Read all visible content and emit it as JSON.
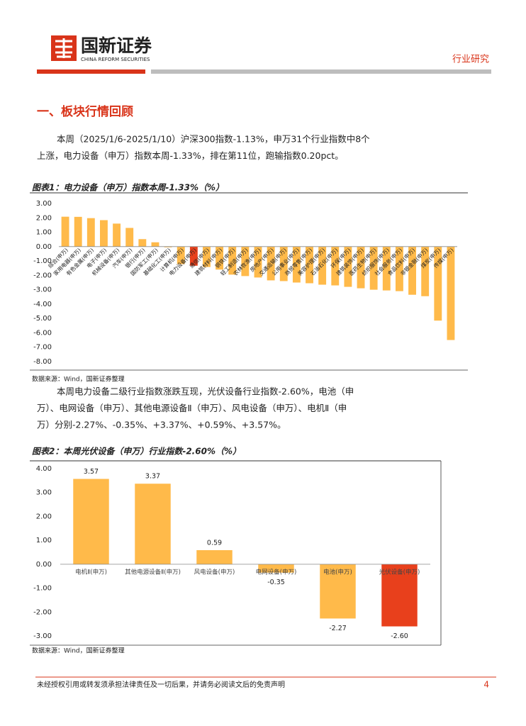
{
  "header": {
    "brand": "国新证券",
    "brand_en": "CHINA REFORM SECURITIES",
    "section_tag": "行业研究"
  },
  "heading": "一、板块行情回顾",
  "paragraphs": [
    [
      "本周（2025/1/6-2025/1/10）沪深300指数-1.13%，申万31个行业指数中8个",
      "上涨，电力设备（申万）指数本周-1.33%，排在第11位，跑输指数0.20pct。"
    ],
    [
      "本周电力设备二级行业指数涨跌互现，光伏设备行业指数-2.60%，电池（申",
      "万）、电网设备（申万）、其他电源设备Ⅱ（申万）、风电设备（申万）、电机Ⅱ（申",
      "万）分别-2.27%、-0.35%、+3.37%、+0.59%、+3.57%。"
    ]
  ],
  "chart_data": [
    {
      "type": "bar",
      "title": "图表1：电力设备（申万）指数本周-1.33%（%）",
      "source": "数据来源：Wind，国新证券整理",
      "categories": [
        "综合(申万)",
        "家用电器(申万)",
        "有色金属(申万)",
        "电子(申万)",
        "机械设备(申万)",
        "汽车(申万)",
        "银行(申万)",
        "国防军工(申万)",
        "基础化工(申万)",
        "计算机(申万)",
        "电力设备(申万)",
        "通信(申万)",
        "建筑材料(申万)",
        "钢铁(申万)",
        "轻工制造(申万)",
        "农林牧渔(申万)",
        "房地产(申万)",
        "交通运输(申万)",
        "公用事业(申万)",
        "商贸零售(申万)",
        "美容护理(申万)",
        "石油石化(申万)",
        "环保(申万)",
        "建筑装饰(申万)",
        "医药生物(申万)",
        "纺织服饰(申万)",
        "社会服务(申万)",
        "食品饮料(申万)",
        "非银金融(申万)",
        "煤炭(申万)",
        "传媒(申万)"
      ],
      "values": [
        2.08,
        2.07,
        1.98,
        1.84,
        1.6,
        1.3,
        0.52,
        0.3,
        -0.05,
        -1.22,
        -1.33,
        -1.42,
        -1.6,
        -1.95,
        -2.05,
        -2.15,
        -2.35,
        -2.4,
        -2.5,
        -2.55,
        -2.65,
        -2.7,
        -2.8,
        -2.9,
        -3.0,
        -3.05,
        -3.1,
        -3.35,
        -3.45,
        -5.15,
        -6.5
      ],
      "colors": [
        "#FFBA4A",
        "#FFBA4A",
        "#FFBA4A",
        "#FFBA4A",
        "#FFBA4A",
        "#FFBA4A",
        "#FFBA4A",
        "#FFBA4A",
        "#FFBA4A",
        "#FFBA4A",
        "#E8401C",
        "#FFBA4A",
        "#FFBA4A",
        "#FFBA4A",
        "#FFBA4A",
        "#FFBA4A",
        "#FFBA4A",
        "#FFBA4A",
        "#FFBA4A",
        "#FFBA4A",
        "#FFBA4A",
        "#FFBA4A",
        "#FFBA4A",
        "#FFBA4A",
        "#FFBA4A",
        "#FFBA4A",
        "#FFBA4A",
        "#FFBA4A",
        "#FFBA4A",
        "#FFBA4A",
        "#FFBA4A"
      ],
      "ylim": [
        -8,
        3
      ],
      "yticks": [
        {
          "value": 3,
          "label": "3.00"
        },
        {
          "value": 2,
          "label": "2.00"
        },
        {
          "value": 1,
          "label": "1.00"
        },
        {
          "value": 0,
          "label": "0.00"
        },
        {
          "value": -1,
          "label": "-1.00"
        },
        {
          "value": -2,
          "label": "-2.00"
        },
        {
          "value": -3,
          "label": "-3.00"
        },
        {
          "value": -4,
          "label": "-4.00"
        },
        {
          "value": -5,
          "label": "-5.00"
        },
        {
          "value": -6,
          "label": "-6.00"
        },
        {
          "value": -7,
          "label": "-7.00"
        },
        {
          "value": -8,
          "label": "-8.00"
        }
      ]
    },
    {
      "type": "bar",
      "title": "图表2：本周光伏设备（申万）行业指数-2.60%（%）",
      "source": "数据来源：Wind，国新证券整理",
      "categories": [
        "电机Ⅱ(申万)",
        "其他电源设备Ⅱ(申万)",
        "风电设备(申万)",
        "电网设备(申万)",
        "电池(申万)",
        "光伏设备(申万)"
      ],
      "values": [
        3.57,
        3.37,
        0.59,
        -0.35,
        -2.27,
        -2.6
      ],
      "value_labels": [
        "3.57",
        "3.37",
        "0.59",
        "-0.35",
        "-2.27",
        "-2.60"
      ],
      "colors": [
        "#FFBA4A",
        "#FFBA4A",
        "#FFBA4A",
        "#FFBA4A",
        "#FFBA4A",
        "#E8401C"
      ],
      "ylim": [
        -3,
        4
      ],
      "yticks": [
        {
          "value": 4,
          "label": "4.00"
        },
        {
          "value": 3,
          "label": "3.00"
        },
        {
          "value": 2,
          "label": "2.00"
        },
        {
          "value": 1,
          "label": "1.00"
        },
        {
          "value": 0,
          "label": "0.00"
        },
        {
          "value": -1,
          "label": "-1.00"
        },
        {
          "value": -2,
          "label": "-2.00"
        },
        {
          "value": -3,
          "label": "-3.00"
        }
      ]
    }
  ],
  "footer": {
    "disclaimer": "未经授权引用或转发须承担法律责任及一切后果，并请务必阅读文后的免责声明",
    "page": 4
  }
}
